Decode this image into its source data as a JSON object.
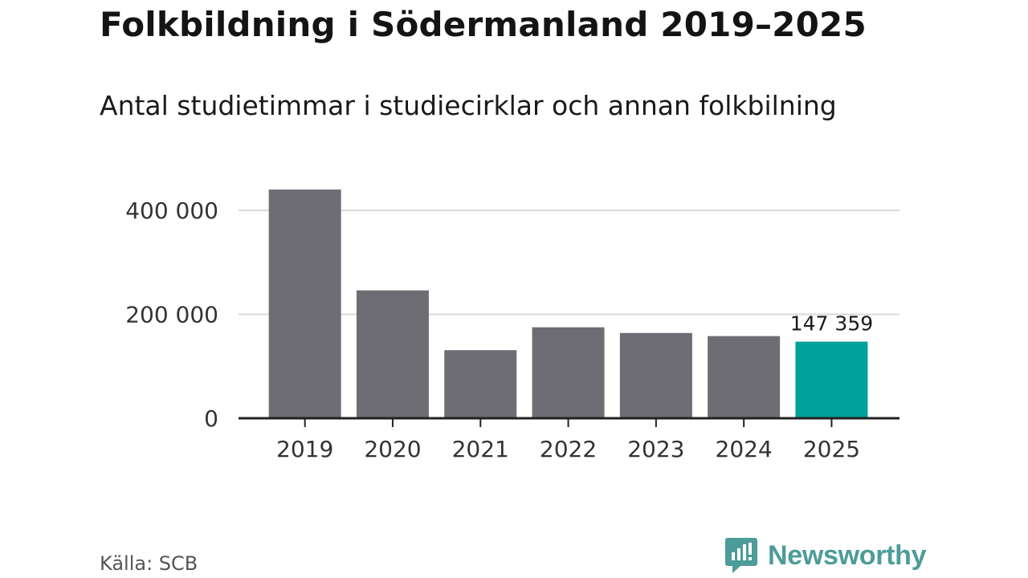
{
  "header": {
    "title": "Folkbildning i Södermanland 2019–2025",
    "subtitle": "Antal studietimmar i studiecirklar och annan folkbilning"
  },
  "footer": {
    "source": "Källa: SCB",
    "brand": "Newsworthy"
  },
  "colors": {
    "bar": "#6e6d73",
    "highlight": "#00a19a",
    "grid": "#d9d9d9",
    "axis": "#222222",
    "brand": "#4c9c99"
  },
  "chart_data": {
    "type": "bar",
    "title": "Folkbildning i Södermanland 2019–2025",
    "subtitle": "Antal studietimmar i studiecirklar och annan folkbilning",
    "xlabel": "",
    "ylabel": "",
    "categories": [
      "2019",
      "2020",
      "2021",
      "2022",
      "2023",
      "2024",
      "2025"
    ],
    "values": [
      440000,
      246000,
      131000,
      175000,
      164000,
      158000,
      147359
    ],
    "highlight_index": 6,
    "data_labels": [
      {
        "index": 6,
        "text": "147 359"
      }
    ],
    "ylim": [
      0,
      400000
    ],
    "yticks": [
      0,
      200000,
      400000
    ],
    "ytick_labels": [
      "0",
      "200 000",
      "400 000"
    ],
    "grid": true
  }
}
